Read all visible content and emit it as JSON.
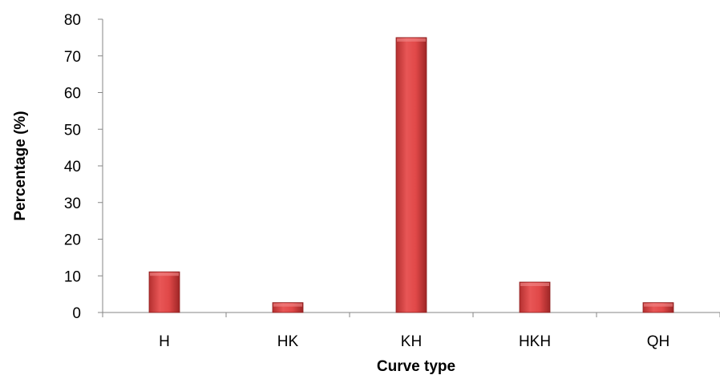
{
  "chart_data": {
    "type": "bar",
    "title": "",
    "xlabel": "Curve type",
    "ylabel": "Percentage (%)",
    "categories": [
      "H",
      "HK",
      "KH",
      "HKH",
      "QH"
    ],
    "values": [
      11.1,
      2.7,
      75.0,
      8.3,
      2.7
    ],
    "ylim": [
      0,
      80
    ],
    "yticks": [
      "0",
      "10",
      "20",
      "30",
      "40",
      "50",
      "60",
      "70",
      "80"
    ],
    "grid": false,
    "legend": "none",
    "colors": {
      "bar": "#d94343",
      "bar_dark": "#a52a2a",
      "bar_light": "#f07070",
      "axis": "#868686"
    }
  }
}
